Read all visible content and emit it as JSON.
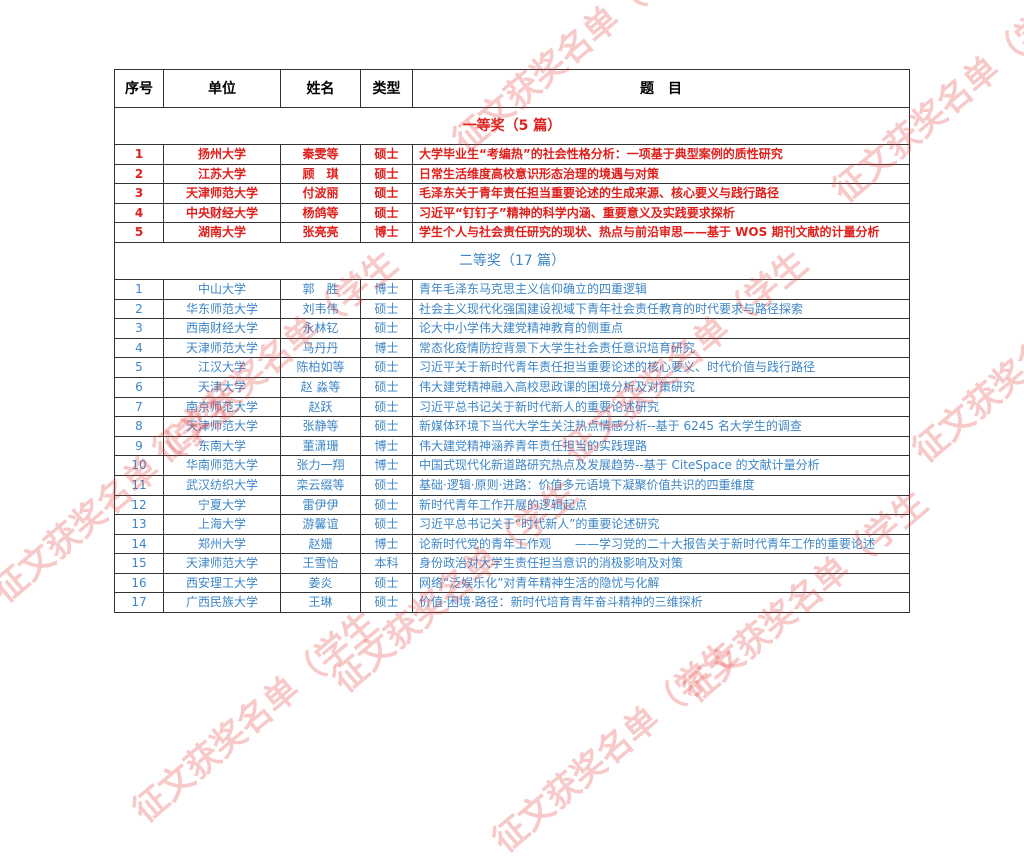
{
  "watermark": "征文获奖名单（学生",
  "colors": {
    "first_prize": "#e0201c",
    "second_prize": "#3d86c6"
  },
  "headers": [
    "序号",
    "单位",
    "姓名",
    "类型",
    "题　目"
  ],
  "sections": [
    {
      "title": "一等奖（5 篇）",
      "rows": [
        [
          "1",
          "扬州大学",
          "秦雯等",
          "硕士",
          "大学毕业生“考编热”的社会性格分析：一项基于典型案例的质性研究"
        ],
        [
          "2",
          "江苏大学",
          "顾　琪",
          "硕士",
          "日常生活维度高校意识形态治理的境遇与对策"
        ],
        [
          "3",
          "天津师范大学",
          "付波丽",
          "硕士",
          "毛泽东关于青年责任担当重要论述的生成来源、核心要义与践行路径"
        ],
        [
          "4",
          "中央财经大学",
          "杨鸽等",
          "硕士",
          "习近平“钉钉子”精神的科学内涵、重要意义及实践要求探析"
        ],
        [
          "5",
          "湖南大学",
          "张亮亮",
          "博士",
          "学生个人与社会责任研究的现状、热点与前沿审思——基于 WOS 期刊文献的计量分析"
        ]
      ]
    },
    {
      "title": "二等奖（17 篇）",
      "rows": [
        [
          "1",
          "中山大学",
          "郭　胜",
          "博士",
          "青年毛泽东马克思主义信仰确立的四重逻辑"
        ],
        [
          "2",
          "华东师范大学",
          "刘韦伟",
          "硕士",
          "社会主义现代化强国建设视域下青年社会责任教育的时代要求与路径探索"
        ],
        [
          "3",
          "西南财经大学",
          "永林钇",
          "硕士",
          "论大中小学伟大建党精神教育的侧重点"
        ],
        [
          "4",
          "天津师范大学",
          "马丹丹",
          "博士",
          "常态化疫情防控背景下大学生社会责任意识培育研究"
        ],
        [
          "5",
          "江汉大学",
          "陈柏如等",
          "硕士",
          "习近平关于新时代青年责任担当重要论述的核心要义、时代价值与践行路径"
        ],
        [
          "6",
          "天津大学",
          "赵 淼等",
          "硕士",
          "伟大建党精神融入高校思政课的困境分析及对策研究"
        ],
        [
          "7",
          "南京师范大学",
          "赵跃",
          "硕士",
          "习近平总书记关于新时代新人的重要论述研究"
        ],
        [
          "8",
          "天津师范大学",
          "张静等",
          "硕士",
          "新媒体环境下当代大学生关注热点情感分析--基于 6245 名大学生的调查"
        ],
        [
          "9",
          "东南大学",
          "董潇珊",
          "博士",
          "伟大建党精神涵养青年责任担当的实践理路"
        ],
        [
          "10",
          "华南师范大学",
          "张力一翔",
          "博士",
          "中国式现代化新道路研究热点及发展趋势--基于 CiteSpace 的文献计量分析"
        ],
        [
          "11",
          "武汉纺织大学",
          "栾云缀等",
          "硕士",
          "基础·逻辑·原则·进路：价值多元语境下凝聚价值共识的四重维度"
        ],
        [
          "12",
          "宁夏大学",
          "雷伊伊",
          "硕士",
          "新时代青年工作开展的逻辑起点"
        ],
        [
          "13",
          "上海大学",
          "游馨谊",
          "硕士",
          "习近平总书记关于“时代新人”的重要论述研究"
        ],
        [
          "14",
          "郑州大学",
          "赵姗",
          "博士",
          "论新时代党的青年工作观　　——学习党的二十大报告关于新时代青年工作的重要论述"
        ],
        [
          "15",
          "天津师范大学",
          "王雪怡",
          "本科",
          "身份政治对大学生责任担当意识的消极影响及对策"
        ],
        [
          "16",
          "西安理工大学",
          "姜炎",
          "硕士",
          "网络“泛娱乐化”对青年精神生活的隐忧与化解"
        ],
        [
          "17",
          "广西民族大学",
          "王琳",
          "硕士",
          "价值·困境·路径：新时代培育青年奋斗精神的三维探析"
        ]
      ]
    }
  ]
}
